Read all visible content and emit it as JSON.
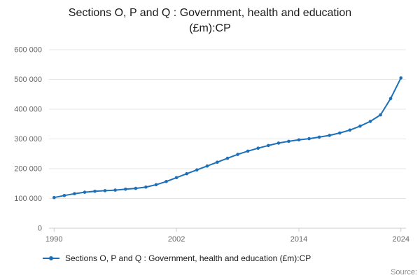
{
  "title": "Sections O, P and Q : Government, health and education (£m):CP",
  "legend": {
    "label": "Sections O, P and Q : Government, health and education (£m):CP"
  },
  "source": {
    "label": "Source:"
  },
  "chart_data": {
    "type": "line",
    "title": "Sections O, P and Q : Government, health and education (£m):CP",
    "xlabel": "",
    "ylabel": "",
    "grid": true,
    "legend_position": "bottom-left",
    "line_color": "#1d70b8",
    "grid_color": "#e6e6e6",
    "axis_color": "#cccccc",
    "tick_color": "#666666",
    "xlim": [
      1989.5,
      2024.5
    ],
    "ylim": [
      0,
      600000
    ],
    "x": [
      1990,
      1991,
      1992,
      1993,
      1994,
      1995,
      1996,
      1997,
      1998,
      1999,
      2000,
      2001,
      2002,
      2003,
      2004,
      2005,
      2006,
      2007,
      2008,
      2009,
      2010,
      2011,
      2012,
      2013,
      2014,
      2015,
      2016,
      2017,
      2018,
      2019,
      2020,
      2021,
      2022,
      2023,
      2024
    ],
    "values": [
      103000,
      110000,
      116000,
      121000,
      124000,
      126000,
      128000,
      131000,
      134000,
      138000,
      146000,
      157000,
      170000,
      183000,
      196000,
      209000,
      222000,
      235000,
      248000,
      259000,
      269000,
      278000,
      286000,
      292000,
      297000,
      301000,
      306000,
      312000,
      320000,
      330000,
      343000,
      359000,
      381000,
      436000,
      505000
    ],
    "yticks": [
      {
        "value": 0,
        "label": "0"
      },
      {
        "value": 100000,
        "label": "100 000"
      },
      {
        "value": 200000,
        "label": "200 000"
      },
      {
        "value": 300000,
        "label": "300 000"
      },
      {
        "value": 400000,
        "label": "400 000"
      },
      {
        "value": 500000,
        "label": "500 000"
      },
      {
        "value": 600000,
        "label": "600 000"
      }
    ],
    "xticks": [
      {
        "value": 1990,
        "label": "1990"
      },
      {
        "value": 2002,
        "label": "2002"
      },
      {
        "value": 2014,
        "label": "2014"
      },
      {
        "value": 2024,
        "label": "2024"
      }
    ]
  }
}
